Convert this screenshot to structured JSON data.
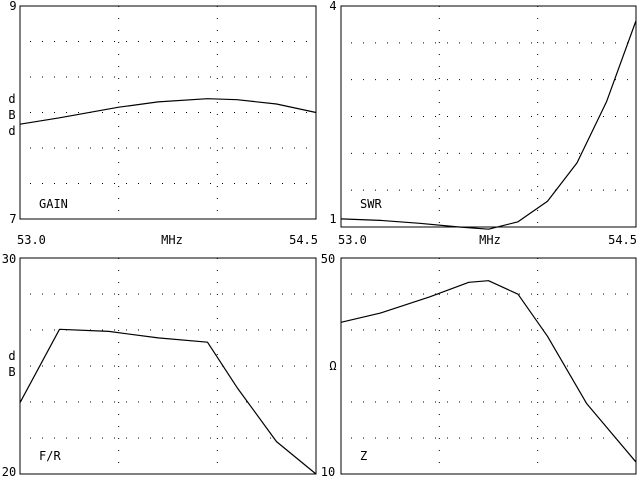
{
  "colors": {
    "background": "#ffffff",
    "ink": "#000000"
  },
  "chart_data": [
    {
      "type": "line",
      "label": "GAIN",
      "ylabel": "dBd",
      "xlabel": "MHz",
      "xlim": [
        53.0,
        54.5
      ],
      "ylim": [
        7,
        9
      ],
      "x_tick_labels": [
        "53.0",
        "54.5"
      ],
      "y_tick_labels": {
        "top": "9",
        "bottom": "7"
      },
      "grid": "dotted",
      "series": [
        {
          "x": [
            53.0,
            53.2,
            53.5,
            53.7,
            53.95,
            54.1,
            54.3,
            54.5
          ],
          "values": [
            7.89,
            7.95,
            8.05,
            8.1,
            8.13,
            8.12,
            8.08,
            8.0
          ]
        }
      ]
    },
    {
      "type": "line",
      "label": "SWR",
      "ylabel": "",
      "xlabel": "MHz",
      "xlim": [
        53.0,
        54.5
      ],
      "ylim": [
        1,
        4
      ],
      "x_tick_labels": [
        "53.0",
        "54.5"
      ],
      "y_tick_labels": {
        "top": "4",
        "bottom": "1"
      },
      "grid": "dotted",
      "series": [
        {
          "x": [
            53.0,
            53.2,
            53.4,
            53.6,
            53.75,
            53.9,
            54.05,
            54.2,
            54.35,
            54.5
          ],
          "values": [
            1.11,
            1.09,
            1.05,
            1.0,
            0.97,
            1.07,
            1.35,
            1.87,
            2.7,
            3.8
          ]
        }
      ]
    },
    {
      "type": "line",
      "label": "F/R",
      "ylabel": "dB",
      "xlabel": "",
      "xlim": [
        53.0,
        54.5
      ],
      "ylim": [
        20,
        30
      ],
      "x_tick_labels": [],
      "y_tick_labels": {
        "top": "30",
        "bottom": "20"
      },
      "grid": "dotted",
      "series": [
        {
          "x": [
            53.0,
            53.2,
            53.45,
            53.7,
            53.95,
            54.1,
            54.3,
            54.5
          ],
          "values": [
            23.3,
            26.7,
            26.6,
            26.3,
            26.1,
            24.0,
            21.5,
            20.0
          ]
        }
      ]
    },
    {
      "type": "line",
      "label": "Z",
      "ylabel": "Ω",
      "xlabel": "",
      "xlim": [
        53.0,
        54.5
      ],
      "ylim": [
        10,
        50
      ],
      "x_tick_labels": [],
      "y_tick_labels": {
        "top": "50",
        "bottom": "10"
      },
      "grid": "dotted",
      "series": [
        {
          "x": [
            53.0,
            53.2,
            53.45,
            53.65,
            53.75,
            53.9,
            54.05,
            54.25,
            54.5
          ],
          "values": [
            38.1,
            39.8,
            42.8,
            45.5,
            45.8,
            43.3,
            35.5,
            23.0,
            12.2
          ]
        }
      ]
    }
  ]
}
